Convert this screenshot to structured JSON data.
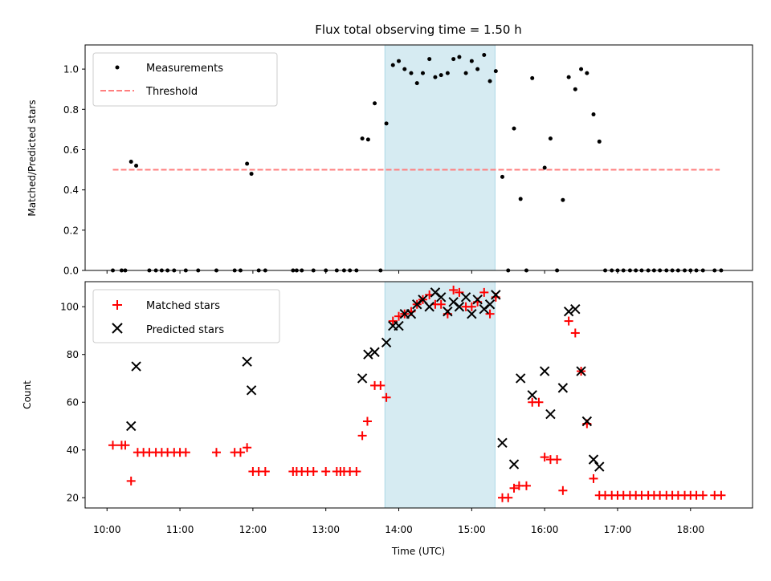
{
  "chart_data": [
    {
      "type": "scatter",
      "title": "Flux total observing time = 1.50 h",
      "xlabel": "",
      "ylabel": "Matched/Predicted stars",
      "ylim": [
        0,
        1.12
      ],
      "yticks": [
        "0.0",
        "0.2",
        "0.4",
        "0.6",
        "0.8",
        "1.0"
      ],
      "grid": false,
      "legend": "top-left",
      "highlight_span": {
        "start_hours": 13.81,
        "end_hours": 15.32,
        "color": "#add8e6"
      },
      "threshold": {
        "name": "Threshold",
        "value": 0.5,
        "x_start_hours": 10.08,
        "x_end_hours": 18.4,
        "color": "#ff7f7f"
      },
      "series": [
        {
          "name": "Measurements",
          "color": "#000000",
          "points": [
            [
              10.08,
              0
            ],
            [
              10.2,
              0
            ],
            [
              10.25,
              0
            ],
            [
              10.33,
              0.54
            ],
            [
              10.4,
              0.52
            ],
            [
              10.58,
              0
            ],
            [
              10.67,
              0
            ],
            [
              10.75,
              0
            ],
            [
              10.83,
              0
            ],
            [
              10.92,
              0
            ],
            [
              11.08,
              0
            ],
            [
              11.25,
              0
            ],
            [
              11.5,
              0
            ],
            [
              11.75,
              0
            ],
            [
              11.83,
              0
            ],
            [
              11.92,
              0.53
            ],
            [
              11.98,
              0.48
            ],
            [
              12.08,
              0
            ],
            [
              12.17,
              0
            ],
            [
              12.55,
              0
            ],
            [
              12.6,
              0
            ],
            [
              12.67,
              0
            ],
            [
              12.83,
              0
            ],
            [
              13.0,
              0
            ],
            [
              13.15,
              0
            ],
            [
              13.25,
              0
            ],
            [
              13.33,
              0
            ],
            [
              13.42,
              0
            ],
            [
              13.5,
              0.655
            ],
            [
              13.58,
              0.65
            ],
            [
              13.67,
              0.83
            ],
            [
              13.75,
              0
            ],
            [
              13.83,
              0.73
            ],
            [
              13.92,
              1.02
            ],
            [
              14.0,
              1.04
            ],
            [
              14.08,
              1.0
            ],
            [
              14.17,
              0.98
            ],
            [
              14.25,
              0.93
            ],
            [
              14.33,
              0.98
            ],
            [
              14.42,
              1.05
            ],
            [
              14.5,
              0.96
            ],
            [
              14.58,
              0.97
            ],
            [
              14.67,
              0.98
            ],
            [
              14.75,
              1.05
            ],
            [
              14.83,
              1.06
            ],
            [
              14.92,
              0.98
            ],
            [
              15.0,
              1.04
            ],
            [
              15.08,
              1.0
            ],
            [
              15.17,
              1.07
            ],
            [
              15.25,
              0.94
            ],
            [
              15.33,
              0.99
            ],
            [
              15.42,
              0.465
            ],
            [
              15.5,
              0
            ],
            [
              15.58,
              0.705
            ],
            [
              15.67,
              0.355
            ],
            [
              15.75,
              0
            ],
            [
              15.83,
              0.955
            ],
            [
              16.0,
              0.51
            ],
            [
              16.08,
              0.655
            ],
            [
              16.17,
              0
            ],
            [
              16.25,
              0.35
            ],
            [
              16.33,
              0.96
            ],
            [
              16.42,
              0.9
            ],
            [
              16.5,
              1.0
            ],
            [
              16.58,
              0.98
            ],
            [
              16.67,
              0.775
            ],
            [
              16.75,
              0.64
            ],
            [
              16.83,
              0
            ],
            [
              16.92,
              0
            ],
            [
              17.0,
              0
            ],
            [
              17.08,
              0
            ],
            [
              17.17,
              0
            ],
            [
              17.25,
              0
            ],
            [
              17.33,
              0
            ],
            [
              17.42,
              0
            ],
            [
              17.5,
              0
            ],
            [
              17.58,
              0
            ],
            [
              17.67,
              0
            ],
            [
              17.75,
              0
            ],
            [
              17.83,
              0
            ],
            [
              17.92,
              0
            ],
            [
              18.0,
              0
            ],
            [
              18.08,
              0
            ],
            [
              18.17,
              0
            ],
            [
              18.33,
              0
            ],
            [
              18.42,
              0
            ]
          ]
        }
      ]
    },
    {
      "type": "scatter",
      "title": "",
      "xlabel": "Time (UTC)",
      "ylabel": "Count",
      "ylim": [
        15.7,
        110.5
      ],
      "yticks": [
        "20",
        "40",
        "60",
        "80",
        "100"
      ],
      "xlim_hours": [
        9.7,
        18.85
      ],
      "xticks": [
        "10:00",
        "11:00",
        "12:00",
        "13:00",
        "14:00",
        "15:00",
        "16:00",
        "17:00",
        "18:00"
      ],
      "grid": false,
      "legend": "top-left",
      "highlight_span": {
        "start_hours": 13.81,
        "end_hours": 15.32,
        "color": "#add8e6"
      },
      "series": [
        {
          "name": "Matched stars",
          "marker": "plus",
          "color": "#ff0000",
          "points": [
            [
              10.08,
              42
            ],
            [
              10.2,
              42
            ],
            [
              10.25,
              42
            ],
            [
              10.33,
              27
            ],
            [
              10.42,
              39
            ],
            [
              10.5,
              39
            ],
            [
              10.58,
              39
            ],
            [
              10.67,
              39
            ],
            [
              10.75,
              39
            ],
            [
              10.83,
              39
            ],
            [
              10.92,
              39
            ],
            [
              11.0,
              39
            ],
            [
              11.08,
              39
            ],
            [
              11.5,
              39
            ],
            [
              11.75,
              39
            ],
            [
              11.83,
              39
            ],
            [
              11.92,
              41
            ],
            [
              12.0,
              31
            ],
            [
              12.08,
              31
            ],
            [
              12.17,
              31
            ],
            [
              12.55,
              31
            ],
            [
              12.6,
              31
            ],
            [
              12.67,
              31
            ],
            [
              12.75,
              31
            ],
            [
              12.83,
              31
            ],
            [
              13.0,
              31
            ],
            [
              13.15,
              31
            ],
            [
              13.2,
              31
            ],
            [
              13.25,
              31
            ],
            [
              13.33,
              31
            ],
            [
              13.42,
              31
            ],
            [
              13.5,
              46
            ],
            [
              13.57,
              52
            ],
            [
              13.67,
              67
            ],
            [
              13.75,
              67
            ],
            [
              13.83,
              62
            ],
            [
              13.92,
              94
            ],
            [
              14.0,
              96
            ],
            [
              14.08,
              97
            ],
            [
              14.17,
              98
            ],
            [
              14.25,
              101
            ],
            [
              14.33,
              103
            ],
            [
              14.42,
              105
            ],
            [
              14.5,
              101
            ],
            [
              14.58,
              101
            ],
            [
              14.67,
              97
            ],
            [
              14.75,
              107
            ],
            [
              14.83,
              106
            ],
            [
              14.92,
              100
            ],
            [
              15.0,
              100
            ],
            [
              15.08,
              102
            ],
            [
              15.17,
              106
            ],
            [
              15.25,
              97
            ],
            [
              15.33,
              104
            ],
            [
              15.42,
              20
            ],
            [
              15.5,
              20
            ],
            [
              15.58,
              24
            ],
            [
              15.65,
              25
            ],
            [
              15.75,
              25
            ],
            [
              15.83,
              60
            ],
            [
              15.92,
              60
            ],
            [
              16.0,
              37
            ],
            [
              16.08,
              36
            ],
            [
              16.17,
              36
            ],
            [
              16.25,
              23
            ],
            [
              16.33,
              94
            ],
            [
              16.42,
              89
            ],
            [
              16.5,
              73
            ],
            [
              16.58,
              51
            ],
            [
              16.67,
              28
            ],
            [
              16.75,
              21
            ],
            [
              16.83,
              21
            ],
            [
              16.92,
              21
            ],
            [
              17.0,
              21
            ],
            [
              17.08,
              21
            ],
            [
              17.17,
              21
            ],
            [
              17.25,
              21
            ],
            [
              17.33,
              21
            ],
            [
              17.42,
              21
            ],
            [
              17.5,
              21
            ],
            [
              17.58,
              21
            ],
            [
              17.67,
              21
            ],
            [
              17.75,
              21
            ],
            [
              17.83,
              21
            ],
            [
              17.92,
              21
            ],
            [
              18.0,
              21
            ],
            [
              18.08,
              21
            ],
            [
              18.17,
              21
            ],
            [
              18.33,
              21
            ],
            [
              18.42,
              21
            ]
          ]
        },
        {
          "name": "Predicted stars",
          "marker": "x",
          "color": "#000000",
          "points": [
            [
              10.33,
              50
            ],
            [
              10.4,
              75
            ],
            [
              11.92,
              77
            ],
            [
              11.98,
              65
            ],
            [
              13.5,
              70
            ],
            [
              13.58,
              80
            ],
            [
              13.67,
              81
            ],
            [
              13.83,
              85
            ],
            [
              13.92,
              92
            ],
            [
              14.0,
              92
            ],
            [
              14.08,
              97
            ],
            [
              14.17,
              97
            ],
            [
              14.25,
              101
            ],
            [
              14.33,
              103
            ],
            [
              14.42,
              100
            ],
            [
              14.5,
              106
            ],
            [
              14.58,
              104
            ],
            [
              14.67,
              98
            ],
            [
              14.75,
              102
            ],
            [
              14.83,
              100
            ],
            [
              14.92,
              104
            ],
            [
              15.0,
              97
            ],
            [
              15.08,
              103
            ],
            [
              15.17,
              99
            ],
            [
              15.25,
              101
            ],
            [
              15.33,
              105
            ],
            [
              15.42,
              43
            ],
            [
              15.58,
              34
            ],
            [
              15.67,
              70
            ],
            [
              15.83,
              63
            ],
            [
              16.0,
              73
            ],
            [
              16.08,
              55
            ],
            [
              16.25,
              66
            ],
            [
              16.33,
              98
            ],
            [
              16.42,
              99
            ],
            [
              16.5,
              73
            ],
            [
              16.58,
              52
            ],
            [
              16.67,
              36
            ],
            [
              16.75,
              33
            ]
          ]
        }
      ]
    }
  ]
}
